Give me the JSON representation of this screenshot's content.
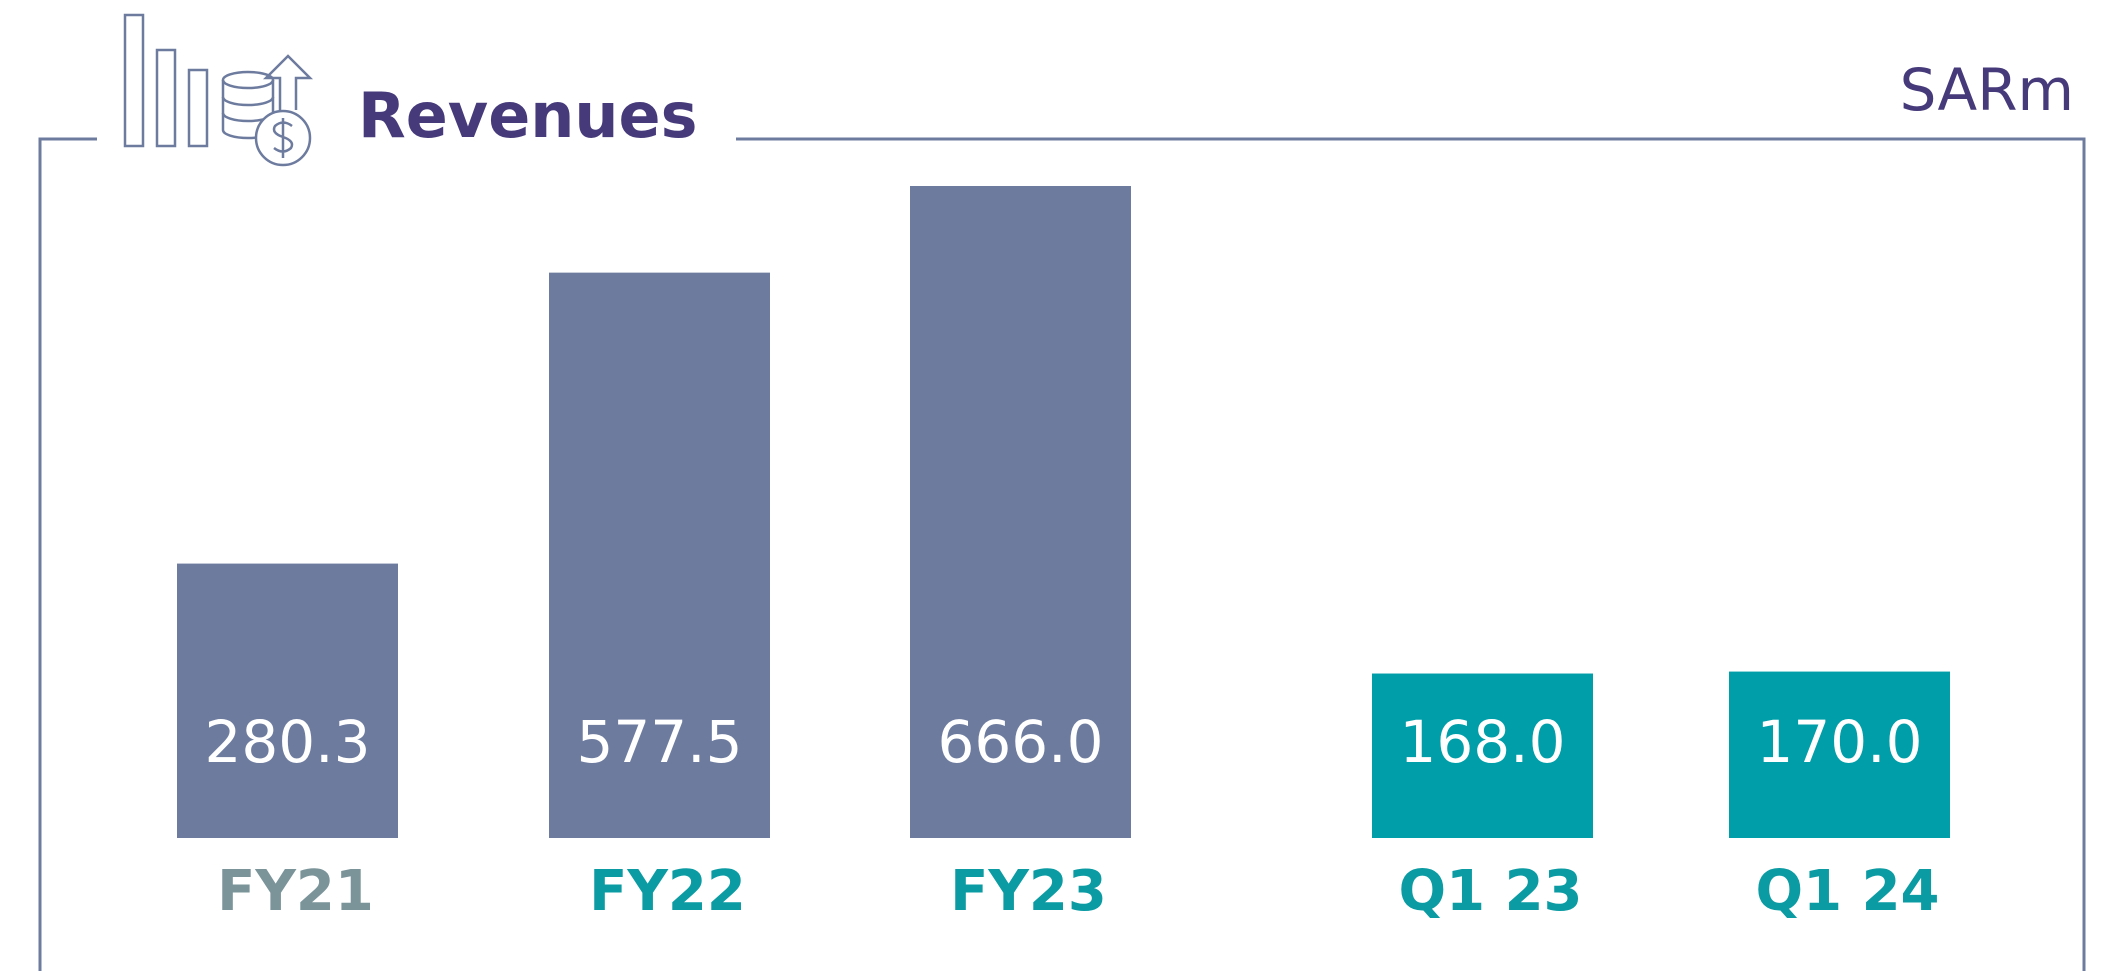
{
  "chart_data": {
    "type": "bar",
    "title": "Revenues",
    "unit": "SARm",
    "categories": [
      "FY21",
      "FY22",
      "FY23",
      "Q1 23",
      "Q1 24"
    ],
    "values": [
      280.3,
      577.5,
      666.0,
      168.0,
      170.0
    ],
    "value_labels": [
      "280.3",
      "577.5",
      "666.0",
      "168.0",
      "170.0"
    ],
    "colors": [
      "#6d7b9f",
      "#6d7b9f",
      "#6d7b9f",
      "#009ea8",
      "#009ea8"
    ],
    "label_colors": [
      "#7a9499",
      "#0a9ba3",
      "#0a9ba3",
      "#0a9ba3",
      "#0a9ba3"
    ]
  }
}
